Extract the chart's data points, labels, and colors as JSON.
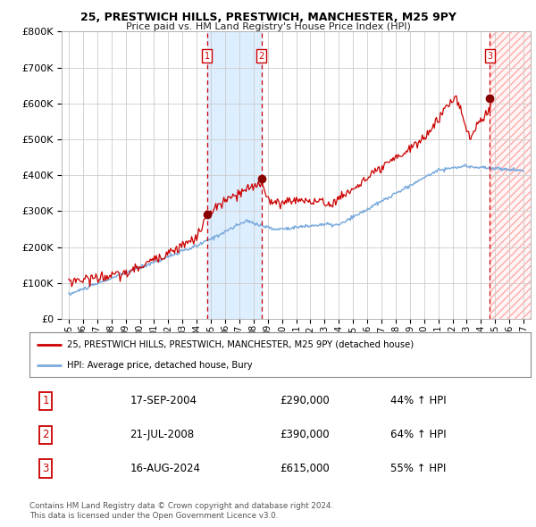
{
  "title": "25, PRESTWICH HILLS, PRESTWICH, MANCHESTER, M25 9PY",
  "subtitle": "Price paid vs. HM Land Registry's House Price Index (HPI)",
  "hpi_label": "HPI: Average price, detached house, Bury",
  "property_label": "25, PRESTWICH HILLS, PRESTWICH, MANCHESTER, M25 9PY (detached house)",
  "footer1": "Contains HM Land Registry data © Crown copyright and database right 2024.",
  "footer2": "This data is licensed under the Open Government Licence v3.0.",
  "transactions": [
    {
      "num": 1,
      "date": "17-SEP-2004",
      "price": "£290,000",
      "pct": "44% ↑ HPI",
      "x_year": 2004.72,
      "dot_y": 290000
    },
    {
      "num": 2,
      "date": "21-JUL-2008",
      "price": "£390,000",
      "pct": "64% ↑ HPI",
      "x_year": 2008.55,
      "dot_y": 390000
    },
    {
      "num": 3,
      "date": "16-AUG-2024",
      "price": "£615,000",
      "pct": "55% ↑ HPI",
      "x_year": 2024.63,
      "dot_y": 615000
    }
  ],
  "red_line_color": "#cc0000",
  "blue_line_color": "#7aaadd",
  "dot_color": "#880000",
  "shade_color": "#ddeeff",
  "grid_color": "#cccccc",
  "background_color": "#ffffff",
  "ylim": [
    0,
    800000
  ],
  "xlim_start": 1994.5,
  "xlim_end": 2027.5,
  "x_ticks": [
    1995,
    1996,
    1997,
    1998,
    1999,
    2000,
    2001,
    2002,
    2003,
    2004,
    2005,
    2006,
    2007,
    2008,
    2009,
    2010,
    2011,
    2012,
    2013,
    2014,
    2015,
    2016,
    2017,
    2018,
    2019,
    2020,
    2021,
    2022,
    2023,
    2024,
    2025,
    2026,
    2027
  ],
  "yticks": [
    0,
    100000,
    200000,
    300000,
    400000,
    500000,
    600000,
    700000,
    800000
  ]
}
